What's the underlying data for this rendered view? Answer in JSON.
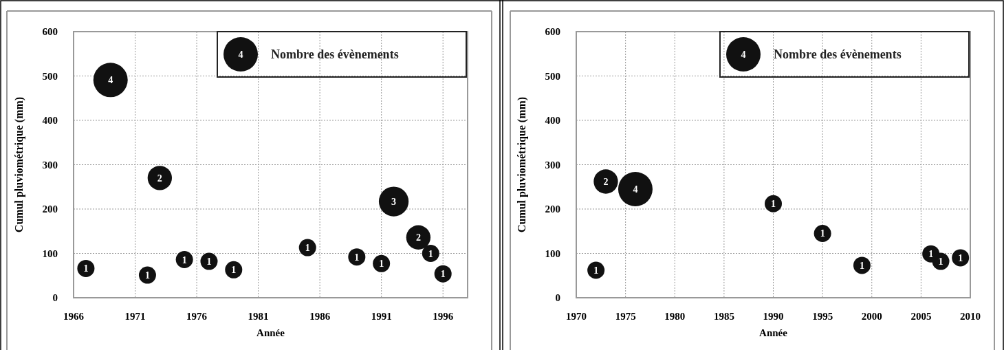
{
  "chart_data": [
    {
      "type": "bubble",
      "xlabel": "Année",
      "ylabel": "Cumul pluviométrique (mm)",
      "legend_title": "Nombre des évènements",
      "grid": true,
      "xlim": [
        1966,
        1998
      ],
      "xticks": [
        1966,
        1971,
        1976,
        1981,
        1986,
        1991,
        1996
      ],
      "ylim": [
        0,
        600
      ],
      "yticks": [
        0,
        100,
        200,
        300,
        400,
        500,
        600
      ],
      "size_legend": [
        4
      ],
      "x": [
        1967,
        1969,
        1972,
        1973,
        1975,
        1977,
        1979,
        1985,
        1989,
        1991,
        1992,
        1994,
        1995,
        1996
      ],
      "series": [
        {
          "color": "#111111",
          "values": [
            66,
            491,
            51,
            270,
            86,
            82,
            63,
            113,
            92,
            77,
            217,
            136,
            100,
            54
          ],
          "sizes": [
            1,
            4,
            1,
            2,
            1,
            1,
            1,
            1,
            1,
            1,
            3,
            2,
            1,
            1
          ],
          "value_labels": [
            "1",
            "4",
            "1",
            "2",
            "1",
            "1",
            "1",
            "1",
            "1",
            "1",
            "3",
            "2",
            "1",
            "1"
          ]
        }
      ]
    },
    {
      "type": "bubble",
      "xlabel": "Année",
      "ylabel": "Cumul pluviométrique (mm)",
      "legend_title": "Nombre des évènements",
      "grid": true,
      "xlim": [
        1970,
        2010
      ],
      "xticks": [
        1970,
        1975,
        1980,
        1985,
        1990,
        1995,
        2000,
        2005,
        2010
      ],
      "ylim": [
        0,
        600
      ],
      "yticks": [
        0,
        100,
        200,
        300,
        400,
        500,
        600
      ],
      "size_legend": [
        4
      ],
      "x": [
        1972,
        1973,
        1976,
        1990,
        1995,
        1999,
        2006,
        2007,
        2009
      ],
      "series": [
        {
          "color": "#111111",
          "values": [
            62,
            262,
            245,
            212,
            145,
            73,
            99,
            82,
            90
          ],
          "sizes": [
            1,
            2,
            4,
            1,
            1,
            1,
            1,
            1,
            1
          ],
          "value_labels": [
            "1",
            "2",
            "4",
            "1",
            "1",
            "1",
            "1",
            "1",
            "1"
          ]
        }
      ]
    }
  ]
}
